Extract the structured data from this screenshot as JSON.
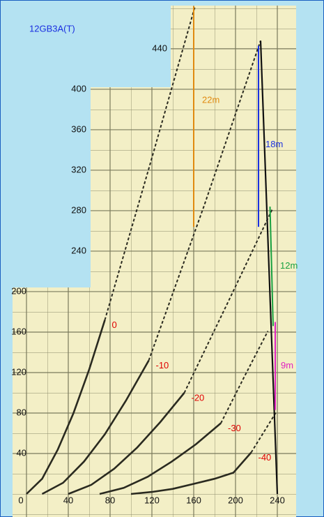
{
  "chart_data": {
    "type": "line",
    "title": "12GB3A(T)",
    "xlim": [
      0,
      258
    ],
    "ylim": [
      0,
      482
    ],
    "xticks": [
      0,
      40,
      80,
      120,
      160,
      200,
      240
    ],
    "yticks": [
      40,
      80,
      120,
      160,
      200,
      240,
      280,
      320,
      360,
      400,
      440
    ],
    "grid": true,
    "curve_color": "#2a2a20",
    "series": [
      {
        "name": "0",
        "color": "#e00000",
        "x": [
          0,
          15,
          30,
          45,
          60,
          75
        ],
        "values": [
          0,
          15,
          44,
          80,
          123,
          172
        ],
        "ext_x": [
          75,
          118,
          161
        ],
        "ext_values": [
          172,
          325,
          481
        ]
      },
      {
        "name": "-10",
        "color": "#e00000",
        "x": [
          15,
          35,
          55,
          75,
          95,
          117
        ],
        "values": [
          0,
          11,
          32,
          59,
          92,
          132
        ],
        "ext_x": [
          117,
          170,
          224
        ],
        "ext_values": [
          132,
          285,
          448
        ]
      },
      {
        "name": "-20",
        "color": "#e00000",
        "x": [
          40,
          62,
          84,
          106,
          128,
          151
        ],
        "values": [
          0,
          9,
          25,
          46,
          71,
          100
        ],
        "ext_x": [
          151,
          193,
          235
        ],
        "ext_values": [
          100,
          190,
          281
        ]
      },
      {
        "name": "-30",
        "color": "#e00000",
        "x": [
          70,
          93,
          116,
          139,
          162,
          186
        ],
        "values": [
          0,
          6,
          17,
          32,
          49,
          70
        ],
        "ext_x": [
          186,
          208,
          231
        ],
        "ext_values": [
          70,
          115,
          161
        ]
      },
      {
        "name": "-40",
        "color": "#e00000",
        "x": [
          100,
          120,
          140,
          160,
          180,
          198,
          215
        ],
        "values": [
          0,
          2,
          5,
          10,
          15,
          21,
          41
        ],
        "ext_x": [
          215,
          239
        ],
        "ext_values": [
          41,
          81
        ]
      }
    ],
    "swings": [
      {
        "name": "22m",
        "color": "#e08a10",
        "x": [
          160,
          160
        ],
        "values": [
          264,
          482
        ]
      },
      {
        "name": "18m",
        "color": "#1a30e0",
        "x": [
          222,
          222
        ],
        "values": [
          264,
          443
        ]
      },
      {
        "name": "12m",
        "color": "#18a040",
        "x": [
          233,
          236
        ],
        "values": [
          284,
          166
        ]
      },
      {
        "name": "9m",
        "color": "#e020c0",
        "x": [
          238,
          238
        ],
        "values": [
          170,
          83
        ]
      }
    ],
    "load_line": {
      "color": "#101010",
      "x": [
        224,
        240
      ],
      "values": [
        448,
        0
      ]
    }
  }
}
